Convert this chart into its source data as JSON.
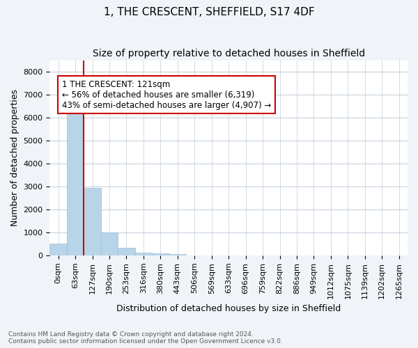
{
  "title": "1, THE CRESCENT, SHEFFIELD, S17 4DF",
  "subtitle": "Size of property relative to detached houses in Sheffield",
  "xlabel": "Distribution of detached houses by size in Sheffield",
  "ylabel": "Number of detached properties",
  "bar_color": "#b8d4e8",
  "bar_edge_color": "#a0bcd8",
  "bar_heights": [
    500,
    6400,
    2950,
    1000,
    320,
    130,
    80,
    55,
    0,
    0,
    0,
    0,
    0,
    0,
    0,
    0,
    0,
    0,
    0,
    0,
    0
  ],
  "bar_labels": [
    "0sqm",
    "63sqm",
    "127sqm",
    "190sqm",
    "253sqm",
    "316sqm",
    "380sqm",
    "443sqm",
    "506sqm",
    "569sqm",
    "633sqm",
    "696sqm",
    "759sqm",
    "822sqm",
    "886sqm",
    "949sqm",
    "1012sqm",
    "1075sqm",
    "1139sqm",
    "1202sqm",
    "1265sqm"
  ],
  "ylim": [
    0,
    8500
  ],
  "yticks": [
    0,
    1000,
    2000,
    3000,
    4000,
    5000,
    6000,
    7000,
    8000
  ],
  "red_line_color": "#cc0000",
  "annotation_text": "1 THE CRESCENT: 121sqm\n← 56% of detached houses are smaller (6,319)\n43% of semi-detached houses are larger (4,907) →",
  "annotation_box_color": "#ffffff",
  "annotation_border_color": "#cc0000",
  "footnote": "Contains HM Land Registry data © Crown copyright and database right 2024.\nContains public sector information licensed under the Open Government Licence v3.0.",
  "bg_color": "#f0f4f8",
  "plot_bg_color": "#ffffff",
  "grid_color": "#c0ccd8",
  "title_fontsize": 11,
  "subtitle_fontsize": 10,
  "axis_label_fontsize": 9,
  "tick_fontsize": 8
}
